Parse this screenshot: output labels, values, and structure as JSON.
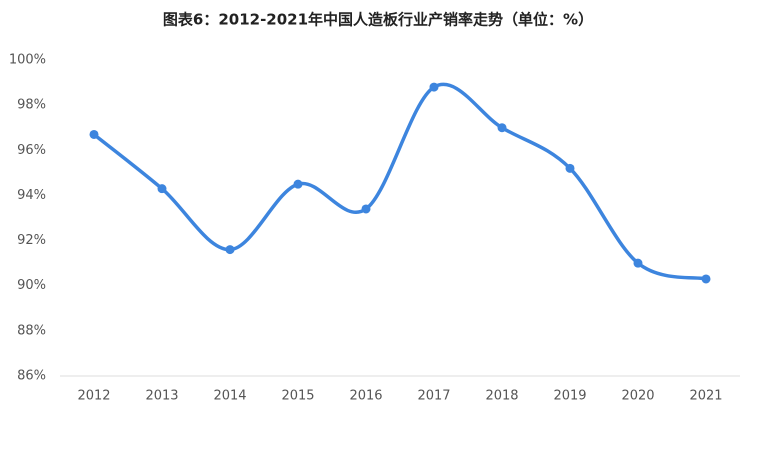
{
  "chart_data": {
    "type": "line",
    "title": "图表6：2012-2021年中国人造板行业产销率走势（单位：%）",
    "categories": [
      "2012",
      "2013",
      "2014",
      "2015",
      "2016",
      "2017",
      "2018",
      "2019",
      "2020",
      "2021"
    ],
    "values": [
      96.7,
      94.3,
      91.6,
      94.5,
      93.4,
      98.8,
      97.0,
      95.2,
      91.0,
      90.3
    ],
    "color": "#3d85de",
    "smooth": true,
    "grid": false,
    "ylim": [
      86,
      100
    ],
    "yticks": [
      {
        "value": 86,
        "label": "86%"
      },
      {
        "value": 88,
        "label": "88%"
      },
      {
        "value": 90,
        "label": "90%"
      },
      {
        "value": 92,
        "label": "92%"
      },
      {
        "value": 94,
        "label": "94%"
      },
      {
        "value": 96,
        "label": "96%"
      },
      {
        "value": 98,
        "label": "98%"
      },
      {
        "value": 100,
        "label": "100%"
      }
    ]
  }
}
